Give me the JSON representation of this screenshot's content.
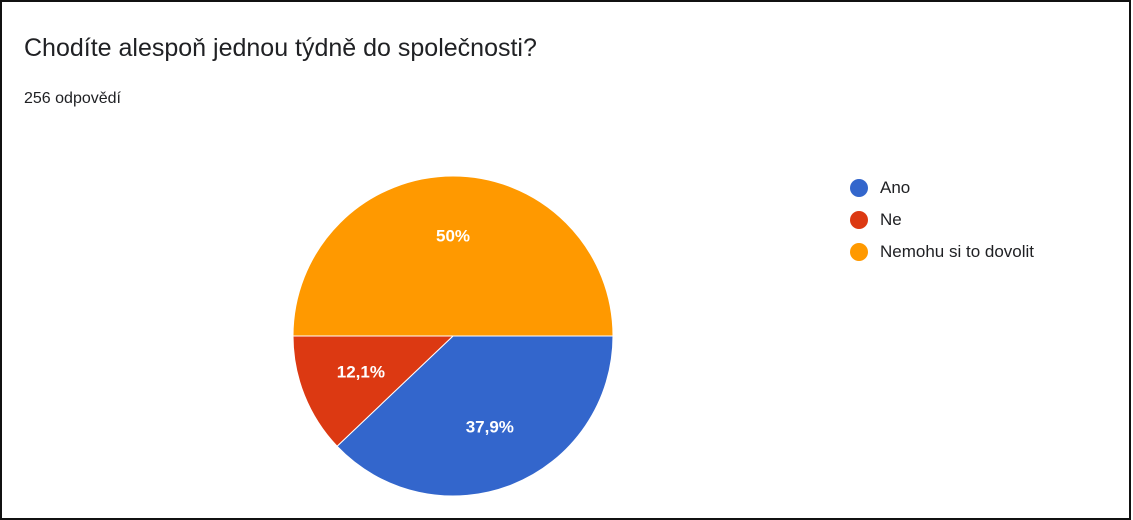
{
  "chart_data": {
    "type": "pie",
    "title": "Chodíte alespoň jednou týdně do společnosti?",
    "subtitle": "256 odpovědí",
    "legend_position": "right",
    "slices": [
      {
        "label": "Ano",
        "value": 37.9,
        "display": "37,9%",
        "color": "#3366cc"
      },
      {
        "label": "Ne",
        "value": 12.1,
        "display": "12,1%",
        "color": "#dc3912"
      },
      {
        "label": "Nemohu si to dovolit",
        "value": 50,
        "display": "50%",
        "color": "#ff9900"
      }
    ]
  }
}
